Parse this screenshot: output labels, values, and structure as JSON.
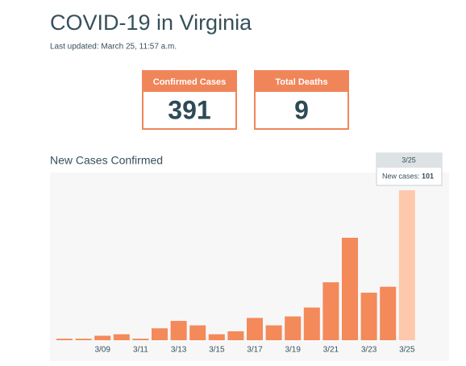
{
  "header": {
    "title": "COVID-19 in Virginia",
    "updated": "Last updated: March 25, 11:57 a.m."
  },
  "stats": [
    {
      "label": "Confirmed Cases",
      "value": 391
    },
    {
      "label": "Total Deaths",
      "value": 9
    }
  ],
  "chart_data": {
    "type": "bar",
    "title": "New Cases Confirmed",
    "categories": [
      null,
      null,
      "3/09",
      null,
      "3/11",
      null,
      "3/13",
      null,
      "3/15",
      null,
      "3/17",
      null,
      "3/19",
      null,
      "3/21",
      null,
      "3/23",
      null,
      "3/25"
    ],
    "values": [
      1,
      1,
      3,
      4,
      1,
      8,
      13,
      10,
      4,
      6,
      15,
      10,
      16,
      22,
      39,
      69,
      32,
      36,
      101
    ],
    "color": "#f4895a",
    "highlight_color": "#fdc8ab",
    "highlight_index": 18,
    "tooltip_label": "New cases:"
  }
}
